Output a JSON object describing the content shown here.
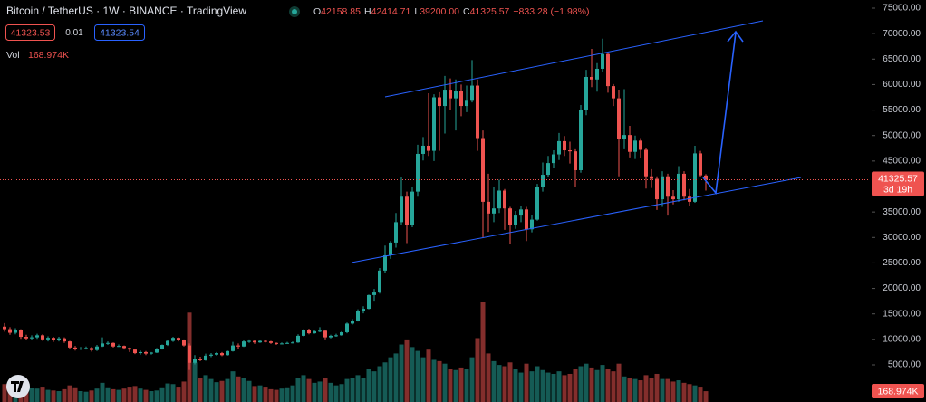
{
  "ui": {
    "title": "Bitcoin / TetherUS · 1W · BINANCE · TradingView",
    "ohlc": [
      {
        "label": "O",
        "text": "42158.85"
      },
      {
        "label": "H",
        "text": "42414.71"
      },
      {
        "label": "L",
        "text": "39200.00"
      },
      {
        "label": "C",
        "text": "41325.57"
      }
    ],
    "change": "−833.28 (−1.98%)",
    "sell_price": "41323.53",
    "spread": "0.01",
    "buy_price": "41323.54",
    "volume_title": "Vol",
    "volume_label": "168.974K",
    "countdown": "3d 19h"
  },
  "chart_data": {
    "type": "candlestick",
    "up_color": "#26a69a",
    "down_color": "#ef5350",
    "grid": false,
    "ylim": [
      -2284,
      76598
    ],
    "yticks": [
      {
        "value": 5000,
        "label": "5000.00"
      },
      {
        "value": 10000,
        "label": "10000.00"
      },
      {
        "value": 15000,
        "label": "15000.00"
      },
      {
        "value": 20000,
        "label": "20000.00"
      },
      {
        "value": 25000,
        "label": "25000.00"
      },
      {
        "value": 30000,
        "label": "30000.00"
      },
      {
        "value": 35000,
        "label": "35000.00"
      },
      {
        "value": 40000,
        "label": "40000.00"
      },
      {
        "value": 45000,
        "label": "45000.00"
      },
      {
        "value": 50000,
        "label": "50000.00"
      },
      {
        "value": 55000,
        "label": "55000.00"
      },
      {
        "value": 60000,
        "label": "60000.00"
      },
      {
        "value": 65000,
        "label": "65000.00"
      },
      {
        "value": 70000,
        "label": "70000.00"
      },
      {
        "value": 75000,
        "label": "75000.00"
      }
    ],
    "open": [
      12500,
      12000,
      11300,
      11800,
      10500,
      10200,
      10400,
      10800,
      10000,
      10300,
      9900,
      10200,
      9600,
      8400,
      8100,
      8200,
      8300,
      7900,
      8600,
      9200,
      9300,
      8600,
      8700,
      8300,
      8000,
      7300,
      7500,
      7200,
      7400,
      8100,
      8900,
      9700,
      10300,
      9900,
      8800,
      5400,
      6200,
      5900,
      6800,
      7000,
      7300,
      6900,
      7700,
      8800,
      8600,
      9600,
      9700,
      9400,
      9700,
      9600,
      9300,
      9100,
      9200,
      9300,
      9400,
      10700,
      11800,
      11200,
      11600,
      11700,
      10400,
      10700,
      10800,
      11400,
      13100,
      13600,
      15500,
      16000,
      18700,
      19200,
      23500,
      26500,
      29000,
      33000,
      38000,
      32500,
      39000,
      46400,
      48000,
      47000,
      57500,
      55800,
      59000,
      57300,
      58800,
      55800,
      57000,
      59800,
      49500,
      37000,
      34700,
      35700,
      39200,
      35700,
      32400,
      34300,
      35500,
      31600,
      33500,
      39900,
      42300,
      44600,
      46300,
      48900,
      47100,
      46900,
      43200,
      55000,
      61500,
      61000,
      63100,
      66000,
      59700,
      57300,
      49300,
      50100,
      46800,
      49000,
      47200,
      42000,
      41500,
      37500,
      42000,
      38000,
      37500,
      42500,
      38000,
      37000,
      46500,
      42158.85
    ],
    "high": [
      13200,
      12400,
      12200,
      12000,
      10900,
      10800,
      11100,
      11000,
      10600,
      10500,
      10500,
      10400,
      9700,
      8700,
      8500,
      8600,
      8500,
      8900,
      10400,
      9600,
      9400,
      9000,
      8800,
      8400,
      8100,
      7800,
      7700,
      7500,
      8300,
      9000,
      9800,
      10500,
      10400,
      10000,
      9200,
      6900,
      6600,
      7200,
      7300,
      7500,
      7500,
      7800,
      9500,
      9200,
      9800,
      10000,
      9800,
      9900,
      9800,
      9700,
      9400,
      9400,
      9500,
      9600,
      11000,
      12000,
      12100,
      11900,
      12400,
      11800,
      10900,
      11100,
      11600,
      13300,
      14000,
      15900,
      16500,
      18800,
      19900,
      24000,
      28400,
      29300,
      34800,
      41900,
      39000,
      40000,
      48200,
      49700,
      58300,
      58100,
      58500,
      61700,
      61200,
      61000,
      60000,
      59800,
      64800,
      61000,
      51000,
      42500,
      40000,
      41300,
      39500,
      36000,
      35200,
      36100,
      36000,
      34500,
      40500,
      44700,
      46000,
      47100,
      50500,
      49900,
      48800,
      47300,
      56000,
      62900,
      67000,
      64200,
      69000,
      66300,
      60100,
      59000,
      59100,
      51900,
      50000,
      49500,
      47500,
      43400,
      42000,
      43000,
      42500,
      39300,
      44000,
      43000,
      39500,
      48000,
      47000,
      42414.71
    ],
    "low": [
      11500,
      10900,
      11000,
      10100,
      9800,
      9900,
      10100,
      9700,
      9600,
      9500,
      9600,
      9300,
      8100,
      7800,
      7900,
      8000,
      7600,
      7700,
      8500,
      8900,
      8400,
      8500,
      8000,
      7500,
      7100,
      7000,
      6900,
      7000,
      7300,
      8000,
      8700,
      9500,
      9600,
      8600,
      4000,
      5100,
      5700,
      5800,
      6500,
      6800,
      6700,
      6800,
      7600,
      8200,
      8500,
      9300,
      9100,
      9300,
      9400,
      9100,
      8900,
      9000,
      9100,
      9200,
      9300,
      10600,
      11000,
      11100,
      11400,
      10000,
      10200,
      10500,
      10700,
      11200,
      12900,
      13500,
      15100,
      15900,
      17600,
      19000,
      23000,
      25800,
      28000,
      32500,
      28900,
      32000,
      38000,
      45100,
      46000,
      45000,
      47000,
      50400,
      55000,
      51000,
      53800,
      54600,
      56500,
      47000,
      30000,
      31100,
      33000,
      34800,
      31500,
      28800,
      31700,
      33000,
      29300,
      31000,
      33300,
      39000,
      41800,
      43700,
      45200,
      46000,
      44500,
      40000,
      42700,
      54000,
      59500,
      58600,
      62500,
      58400,
      55800,
      42000,
      47300,
      45700,
      45400,
      45500,
      39600,
      39700,
      35400,
      36000,
      34300,
      36500,
      37000,
      37300,
      36200,
      36800,
      41800,
      39200
    ],
    "close": [
      12000,
      11300,
      11800,
      10500,
      10200,
      10400,
      10800,
      10000,
      10300,
      9900,
      10200,
      9600,
      8400,
      8100,
      8200,
      8300,
      7900,
      8600,
      9200,
      9300,
      8600,
      8700,
      8300,
      8000,
      7300,
      7500,
      7200,
      7400,
      8100,
      8900,
      9700,
      10300,
      9900,
      8800,
      5400,
      6200,
      5900,
      6800,
      7000,
      7300,
      6900,
      7700,
      8800,
      8600,
      9600,
      9700,
      9400,
      9700,
      9600,
      9300,
      9100,
      9200,
      9300,
      9400,
      10700,
      11800,
      11200,
      11600,
      11700,
      10400,
      10700,
      10800,
      11400,
      13100,
      13600,
      15500,
      16000,
      18700,
      19200,
      23500,
      26500,
      29000,
      33000,
      38000,
      32500,
      39000,
      46400,
      48000,
      47000,
      57500,
      55800,
      59000,
      57300,
      58800,
      55800,
      57000,
      59800,
      49500,
      37000,
      34700,
      35700,
      39200,
      35700,
      32400,
      34300,
      35500,
      31600,
      33500,
      39900,
      42300,
      44600,
      46300,
      48900,
      47100,
      46900,
      43200,
      55000,
      61500,
      61000,
      63100,
      66000,
      59700,
      57300,
      49300,
      50100,
      46800,
      49000,
      47200,
      42000,
      41500,
      37500,
      42000,
      38000,
      37500,
      42500,
      38000,
      37000,
      46500,
      42200,
      41325.57
    ],
    "volume": [
      280000,
      310000,
      260000,
      240000,
      200000,
      220000,
      210000,
      240000,
      190000,
      180000,
      170000,
      200000,
      260000,
      230000,
      170000,
      160000,
      180000,
      210000,
      300000,
      230000,
      200000,
      190000,
      210000,
      240000,
      250000,
      210000,
      190000,
      170000,
      180000,
      230000,
      290000,
      280000,
      240000,
      320000,
      1400000,
      620000,
      380000,
      420000,
      360000,
      310000,
      330000,
      360000,
      480000,
      400000,
      380000,
      330000,
      250000,
      260000,
      240000,
      200000,
      190000,
      210000,
      230000,
      260000,
      380000,
      420000,
      360000,
      300000,
      320000,
      380000,
      300000,
      260000,
      280000,
      360000,
      380000,
      420000,
      380000,
      520000,
      480000,
      560000,
      620000,
      700000,
      760000,
      900000,
      980000,
      860000,
      800000,
      700000,
      820000,
      660000,
      640000,
      600000,
      520000,
      500000,
      540000,
      520000,
      700000,
      1000000,
      1560000,
      760000,
      640000,
      580000,
      560000,
      620000,
      520000,
      460000,
      600000,
      480000,
      560000,
      500000,
      460000,
      440000,
      480000,
      420000,
      440000,
      520000,
      560000,
      600000,
      540000,
      500000,
      580000,
      520000,
      480000,
      600000,
      400000,
      380000,
      360000,
      340000,
      420000,
      380000,
      440000,
      360000,
      360000,
      320000,
      340000,
      300000,
      280000,
      260000,
      240000,
      168974
    ]
  }
}
